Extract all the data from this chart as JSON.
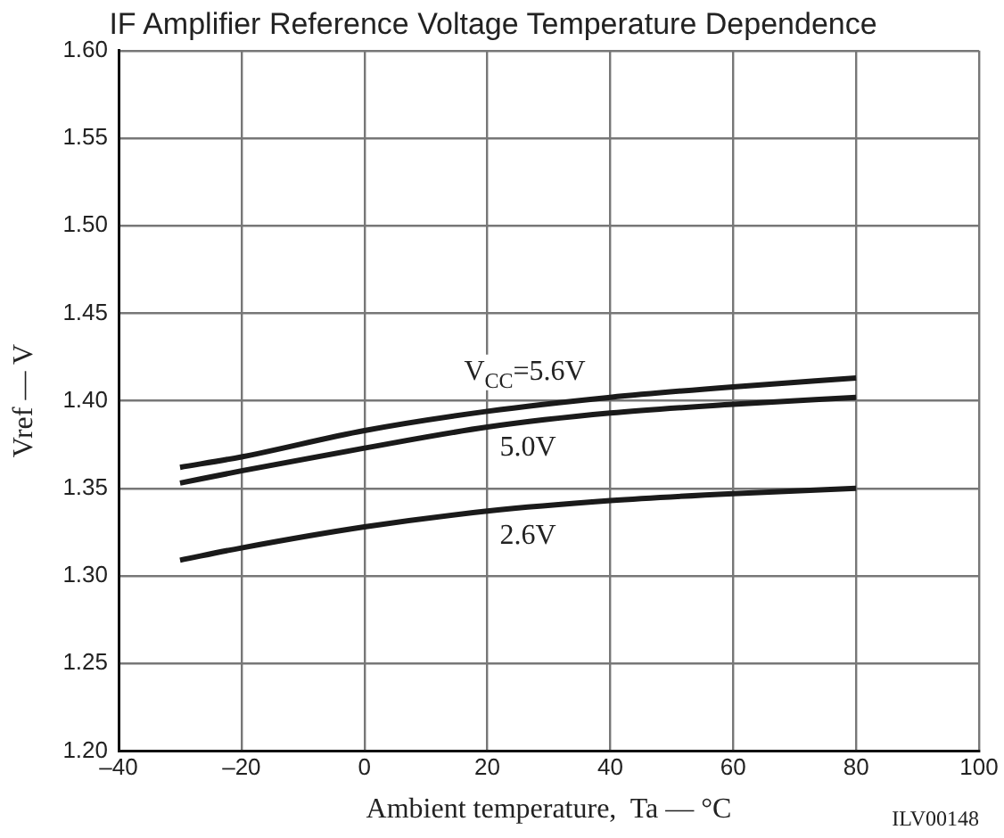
{
  "chart_data": {
    "type": "line",
    "title": "IF Amplifier Reference Voltage Temperature Dependence",
    "xlabel": "Ambient temperature,  Ta — °C",
    "ylabel": "Vref — V",
    "x": [
      -30,
      -20,
      0,
      20,
      40,
      60,
      80
    ],
    "series": [
      {
        "name": "V$_{CC}$=5.6V",
        "color": "#1a1a1a",
        "values": [
          1.362,
          1.368,
          1.383,
          1.394,
          1.402,
          1.408,
          1.413
        ]
      },
      {
        "name": "5.0V",
        "color": "#1a1a1a",
        "values": [
          1.353,
          1.36,
          1.373,
          1.385,
          1.393,
          1.398,
          1.402
        ]
      },
      {
        "name": "2.6V",
        "color": "#1a1a1a",
        "values": [
          1.309,
          1.316,
          1.328,
          1.337,
          1.343,
          1.347,
          1.35
        ]
      }
    ],
    "xlim": [
      -40,
      100
    ],
    "xticks": [
      {
        "value": -40,
        "label": "–40"
      },
      {
        "value": -20,
        "label": "–20"
      },
      0,
      20,
      40,
      60,
      80,
      100
    ],
    "ylim": [
      1.2,
      1.6
    ],
    "yticks": [
      {
        "value": 1.2,
        "label": "1.20"
      },
      {
        "value": 1.25,
        "label": "1.25"
      },
      {
        "value": 1.3,
        "label": "1.30"
      },
      {
        "value": 1.35,
        "label": "1.35"
      },
      {
        "value": 1.4,
        "label": "1.40"
      },
      {
        "value": 1.45,
        "label": "1.45"
      },
      {
        "value": 1.5,
        "label": "1.50"
      },
      {
        "value": 1.55,
        "label": "1.55"
      },
      {
        "value": 1.6,
        "label": "1.60"
      }
    ],
    "grid": true,
    "legend": false,
    "marker": "none",
    "line_style": "solid",
    "annotations": [
      "ILV00148"
    ]
  }
}
